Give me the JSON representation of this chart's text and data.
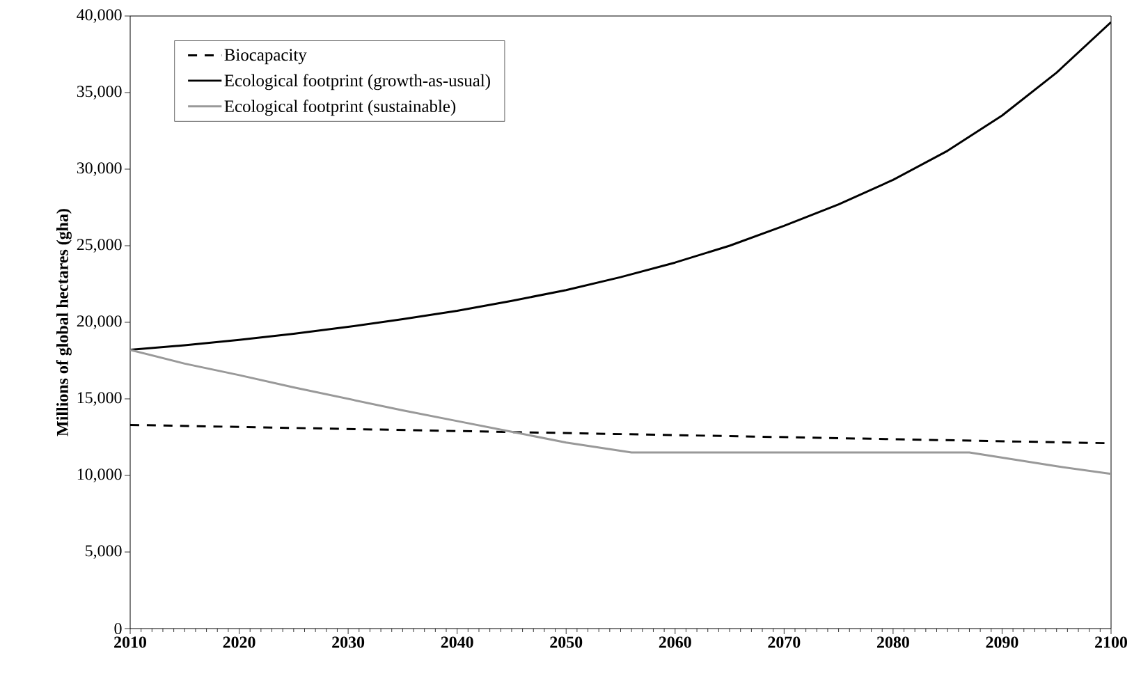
{
  "chart_data": {
    "type": "line",
    "ylabel": "Millions of global hectares (gha)",
    "xlim": [
      2010,
      2100
    ],
    "xticks": [
      2010,
      2020,
      2030,
      2040,
      2050,
      2060,
      2070,
      2080,
      2090,
      2100
    ],
    "ylim": [
      0,
      40000
    ],
    "yticks": [
      {
        "value": 0,
        "label": "0"
      },
      {
        "value": 5000,
        "label": "5,000"
      },
      {
        "value": 10000,
        "label": "10,000"
      },
      {
        "value": 15000,
        "label": "15,000"
      },
      {
        "value": 20000,
        "label": "20,000"
      },
      {
        "value": 25000,
        "label": "25,000"
      },
      {
        "value": 30000,
        "label": "30,000"
      },
      {
        "value": 35000,
        "label": "35,000"
      },
      {
        "value": 40000,
        "label": "40,000"
      }
    ],
    "grid": false,
    "legend": "top left",
    "marker": "none",
    "series": [
      {
        "name": "Biocapacity",
        "color": "#000000",
        "line_style": "dashed",
        "x": [
          2010,
          2100
        ],
        "values": [
          13300,
          12100
        ]
      },
      {
        "name": "Ecological footprint (growth-as-usual)",
        "color": "#000000",
        "line_style": "solid",
        "x": [
          2010,
          2015,
          2020,
          2025,
          2030,
          2035,
          2040,
          2045,
          2050,
          2055,
          2060,
          2065,
          2070,
          2075,
          2080,
          2085,
          2090,
          2095,
          2100
        ],
        "values": [
          18200,
          18500,
          18850,
          19250,
          19700,
          20200,
          20750,
          21400,
          22100,
          22950,
          23900,
          25000,
          26300,
          27700,
          29300,
          31200,
          33500,
          36300,
          39600
        ]
      },
      {
        "name": "Ecological footprint (sustainable)",
        "color": "#999999",
        "line_style": "solid",
        "x": [
          2010,
          2015,
          2020,
          2025,
          2030,
          2035,
          2040,
          2045,
          2050,
          2056,
          2087,
          2095,
          2100
        ],
        "values": [
          18200,
          17300,
          16550,
          15750,
          15000,
          14250,
          13550,
          12850,
          12150,
          11500,
          11500,
          10600,
          10100
        ]
      }
    ]
  }
}
